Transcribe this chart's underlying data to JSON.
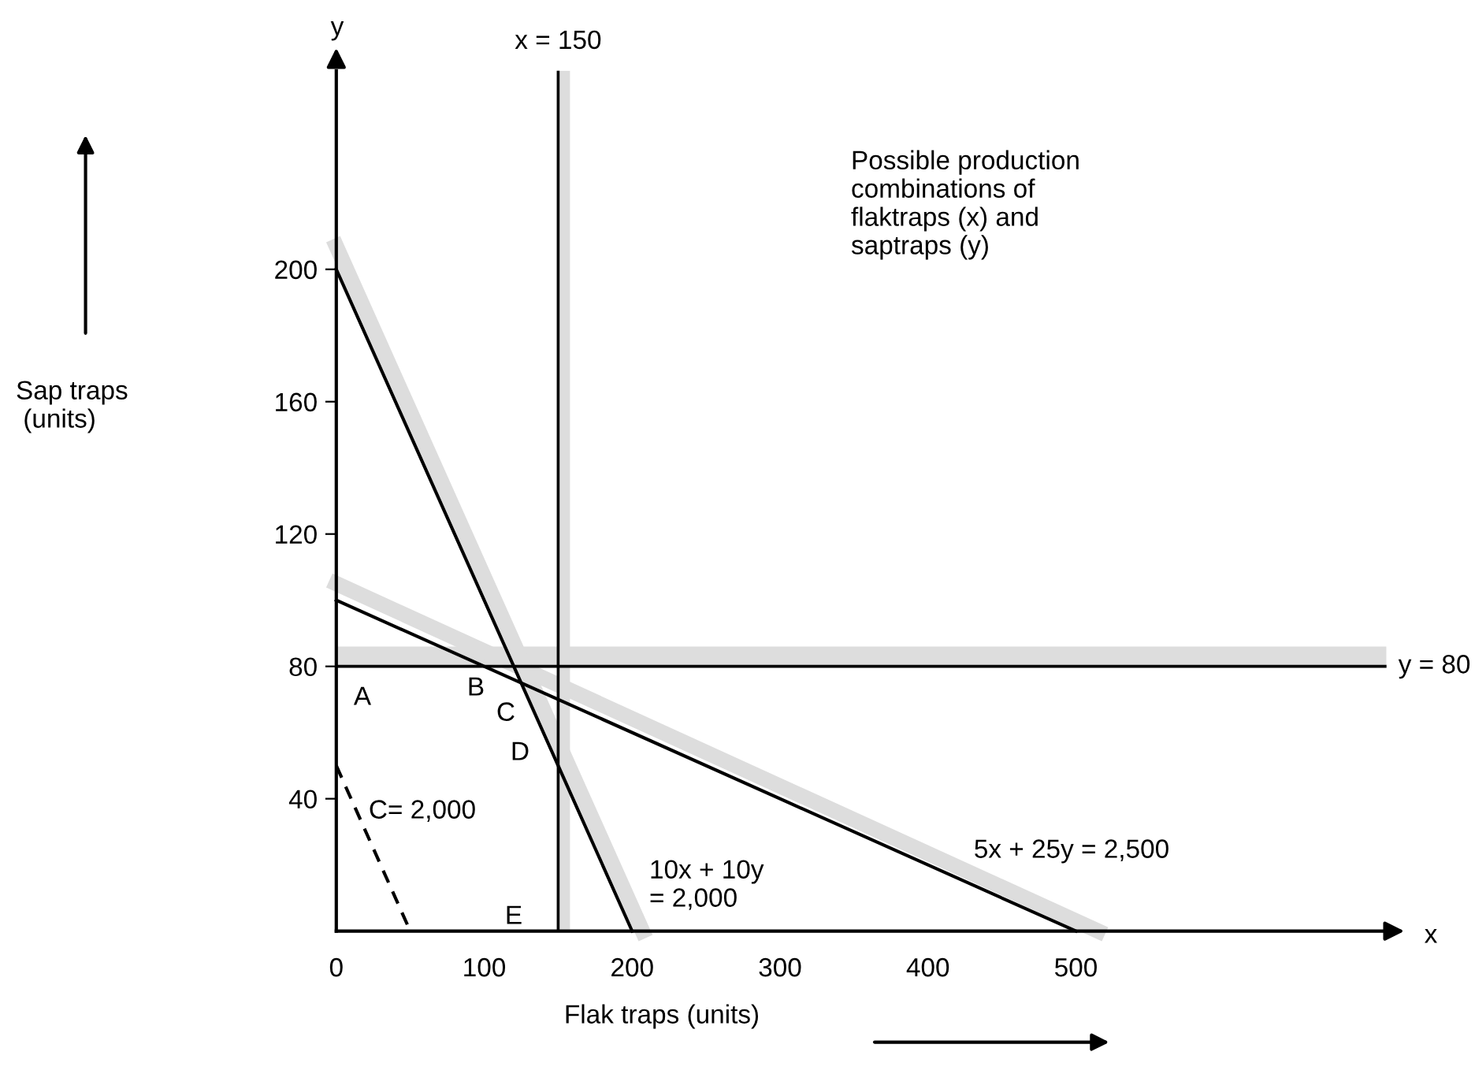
{
  "chart_data": {
    "type": "line",
    "xlabel": "Flak traps (units)",
    "xlim": [
      0,
      710
    ],
    "ylim": [
      0,
      260
    ],
    "xticks": [
      0,
      100,
      200,
      300,
      400,
      500
    ],
    "yticks": [
      40,
      80,
      120,
      160,
      200
    ],
    "grid": false,
    "legend": false,
    "marker": "none",
    "series": [
      {
        "color": "#dddddd",
        "x": [
          0,
          207
        ],
        "values": [
          207,
          0
        ]
      },
      {
        "color": "#dddddd",
        "x": [
          0,
          515
        ],
        "values": [
          105,
          0
        ]
      },
      {
        "color": "#000000",
        "x": [
          0,
          200
        ],
        "values": [
          200,
          0
        ]
      },
      {
        "color": "#000000",
        "x": [
          0,
          500
        ],
        "values": [
          100,
          0
        ]
      },
      {
        "color": "#000000",
        "x": [
          0,
          50
        ],
        "values": [
          50,
          0
        ],
        "line_style": "dashed"
      }
    ],
    "bands": [
      {
        "axis": "y",
        "from": 80,
        "to": 86,
        "color": "#dddddd"
      },
      {
        "axis": "x",
        "from": 150,
        "to": 158,
        "color": "#dddddd"
      }
    ],
    "ref_lines": [
      {
        "axis": "x",
        "value": 150,
        "label": "x = 150",
        "color": "#000000"
      },
      {
        "axis": "y",
        "value": 80,
        "label": "y = 80",
        "color": "#000000"
      }
    ],
    "annotations": [
      "Possible production\ncombinations of\nflaktraps (x) and\nsaptraps (y)",
      "A",
      "B",
      "C",
      "D",
      "E",
      "C= 2,000",
      "10x + 10y\n= 2,000",
      "5x + 25y = 2,500",
      "x",
      "y",
      "Sap traps\n (units)"
    ]
  }
}
